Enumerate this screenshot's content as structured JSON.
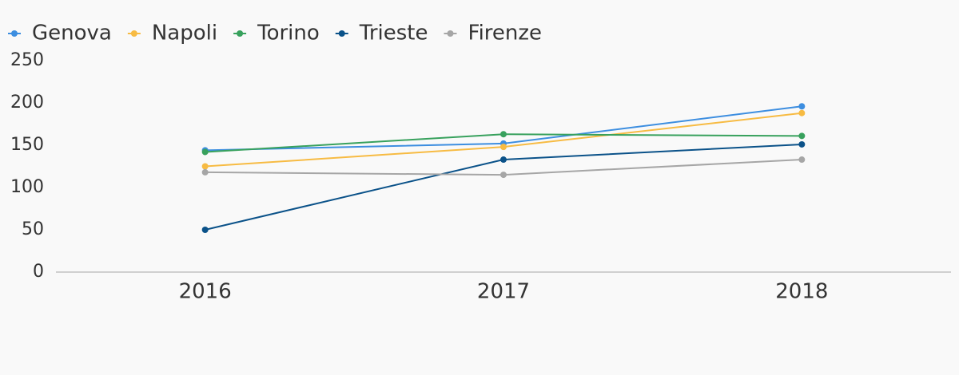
{
  "chart_data": {
    "type": "line",
    "categories": [
      "2016",
      "2017",
      "2018"
    ],
    "series": [
      {
        "name": "Genova",
        "color": "#3d8ee0",
        "values": [
          144,
          152,
          196
        ]
      },
      {
        "name": "Napoli",
        "color": "#f7bb43",
        "values": [
          125,
          148,
          188
        ]
      },
      {
        "name": "Torino",
        "color": "#38a15d",
        "values": [
          142,
          163,
          161
        ]
      },
      {
        "name": "Trieste",
        "color": "#0b5289",
        "values": [
          50,
          133,
          151
        ]
      },
      {
        "name": "Firenze",
        "color": "#a6a6a6",
        "values": [
          118,
          115,
          133
        ]
      }
    ],
    "ylim": [
      0,
      250
    ],
    "yticks": [
      0,
      50,
      100,
      150,
      200,
      250
    ],
    "grid": false
  }
}
